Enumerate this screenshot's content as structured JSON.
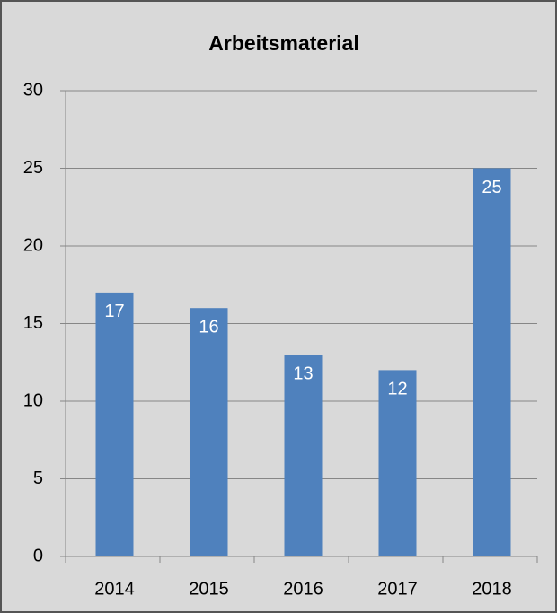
{
  "chart_data": {
    "type": "bar",
    "title": "Arbeitsmaterial",
    "categories": [
      "2014",
      "2015",
      "2016",
      "2017",
      "2018"
    ],
    "values": [
      17,
      16,
      13,
      12,
      25
    ],
    "color": "#4f81bd",
    "ylim": [
      0,
      30
    ],
    "yticks": [
      0,
      5,
      10,
      15,
      20,
      25,
      30
    ],
    "grid": true,
    "data_labels": true
  }
}
